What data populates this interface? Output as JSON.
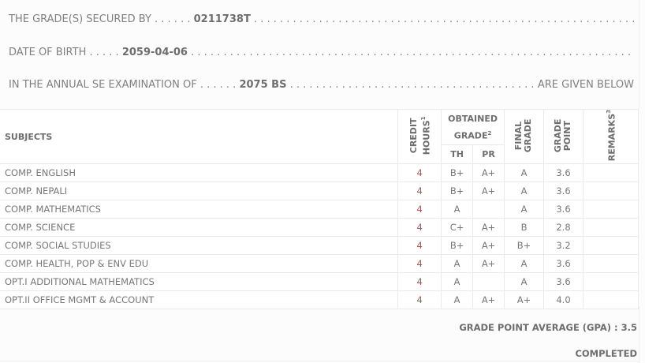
{
  "info": {
    "secured_label": "THE GRADE(S) SECURED BY . . . . . .",
    "symbol_no": "0211738T",
    "dob_label": "DATE OF BIRTH . . . . .",
    "dob": "2059-04-06",
    "exam_label": "IN THE ANNUAL SE EXAMINATION OF . . . . . .",
    "exam_year": "2075 BS",
    "given_below": "ARE GIVEN BELOW"
  },
  "table": {
    "headers": {
      "subjects": "SUBJECTS",
      "credit_hours": "CREDIT HOURS",
      "credit_sup": "1",
      "obtained": "OBTAINED GRADE",
      "obtained_sup": "2",
      "th": "TH",
      "pr": "PR",
      "final_grade": "FINAL GRADE",
      "grade_point": "GRADE POINT",
      "remarks": "REMARKS",
      "remarks_sup": "3"
    },
    "rows": [
      {
        "subject": "COMP. ENGLISH",
        "credit": "4",
        "th": "B+",
        "pr": "A+",
        "final": "A",
        "gp": "3.6",
        "remarks": ""
      },
      {
        "subject": "COMP. NEPALI",
        "credit": "4",
        "th": "B+",
        "pr": "A+",
        "final": "A",
        "gp": "3.6",
        "remarks": ""
      },
      {
        "subject": "COMP. MATHEMATICS",
        "credit": "4",
        "th": "A",
        "pr": "",
        "final": "A",
        "gp": "3.6",
        "remarks": ""
      },
      {
        "subject": "COMP. SCIENCE",
        "credit": "4",
        "th": "C+",
        "pr": "A+",
        "final": "B",
        "gp": "2.8",
        "remarks": ""
      },
      {
        "subject": "COMP. SOCIAL STUDIES",
        "credit": "4",
        "th": "B+",
        "pr": "A+",
        "final": "B+",
        "gp": "3.2",
        "remarks": ""
      },
      {
        "subject": "COMP. HEALTH, POP & ENV EDU",
        "credit": "4",
        "th": "A",
        "pr": "A+",
        "final": "A",
        "gp": "3.6",
        "remarks": ""
      },
      {
        "subject": "OPT.I ADDITIONAL MATHEMATICS",
        "credit": "4",
        "th": "A",
        "pr": "",
        "final": "A",
        "gp": "3.6",
        "remarks": ""
      },
      {
        "subject": "OPT.II OFFICE MGMT & ACCOUNT",
        "credit": "4",
        "th": "A",
        "pr": "A+",
        "final": "A+",
        "gp": "4.0",
        "remarks": ""
      }
    ]
  },
  "footer": {
    "gpa": "GRADE POINT AVERAGE (GPA) : 3.5",
    "status": "COMPLETED"
  }
}
